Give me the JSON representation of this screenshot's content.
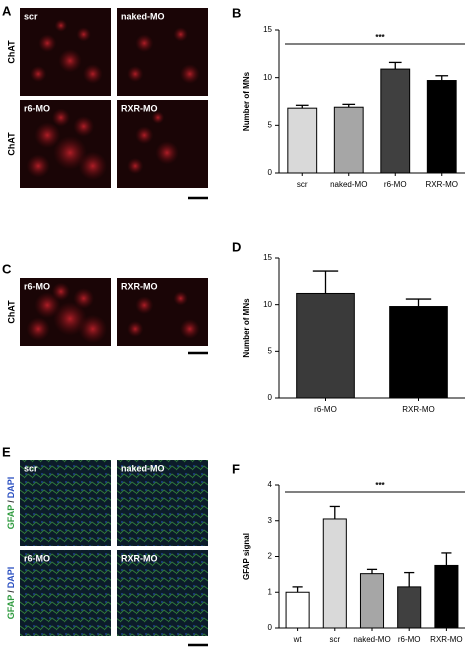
{
  "figure": {
    "panels": {
      "A": {
        "letter": "A",
        "stain": "ChAT",
        "images": [
          "scr",
          "naked-MO",
          "r6-MO",
          "RXR-MO"
        ]
      },
      "C": {
        "letter": "C",
        "stain": "ChAT",
        "images": [
          "r6-MO",
          "RXR-MO"
        ]
      },
      "E": {
        "letter": "E",
        "stain_1": "GFAP",
        "separator": "/",
        "stain_2": "DAPI",
        "images": [
          "scr",
          "naked-MO",
          "r6-MO",
          "RXR-MO"
        ]
      }
    }
  },
  "chart_data": [
    {
      "type": "bar",
      "panel": "B",
      "ylabel": "Number of MNs",
      "categories": [
        "scr",
        "naked-MO",
        "r6-MO",
        "RXR-MO"
      ],
      "values": [
        6.8,
        6.9,
        10.9,
        9.7
      ],
      "errors": [
        0.3,
        0.3,
        0.7,
        0.5
      ],
      "colors": [
        "#d9d9d9",
        "#a6a6a6",
        "#404040",
        "#000000"
      ],
      "ylim": [
        0,
        15
      ],
      "yticks": [
        0,
        5,
        10,
        15
      ],
      "significance": "***"
    },
    {
      "type": "bar",
      "panel": "D",
      "ylabel": "Number of MNs",
      "categories": [
        "r6-MO",
        "RXR-MO"
      ],
      "values": [
        11.2,
        9.8
      ],
      "errors": [
        2.4,
        0.8
      ],
      "colors": [
        "#3a3a3a",
        "#000000"
      ],
      "ylim": [
        0,
        15
      ],
      "yticks": [
        0,
        5,
        10,
        15
      ]
    },
    {
      "type": "bar",
      "panel": "F",
      "ylabel": "GFAP signal",
      "categories": [
        "wt",
        "scr",
        "naked-MO",
        "r6-MO",
        "RXR-MO"
      ],
      "values": [
        1.0,
        3.05,
        1.52,
        1.15,
        1.75
      ],
      "errors": [
        0.15,
        0.35,
        0.12,
        0.4,
        0.35
      ],
      "colors": [
        "#ffffff",
        "#d9d9d9",
        "#a6a6a6",
        "#404040",
        "#000000"
      ],
      "ylim": [
        0,
        4
      ],
      "yticks": [
        0,
        1,
        2,
        3,
        4
      ],
      "significance": "***"
    }
  ]
}
